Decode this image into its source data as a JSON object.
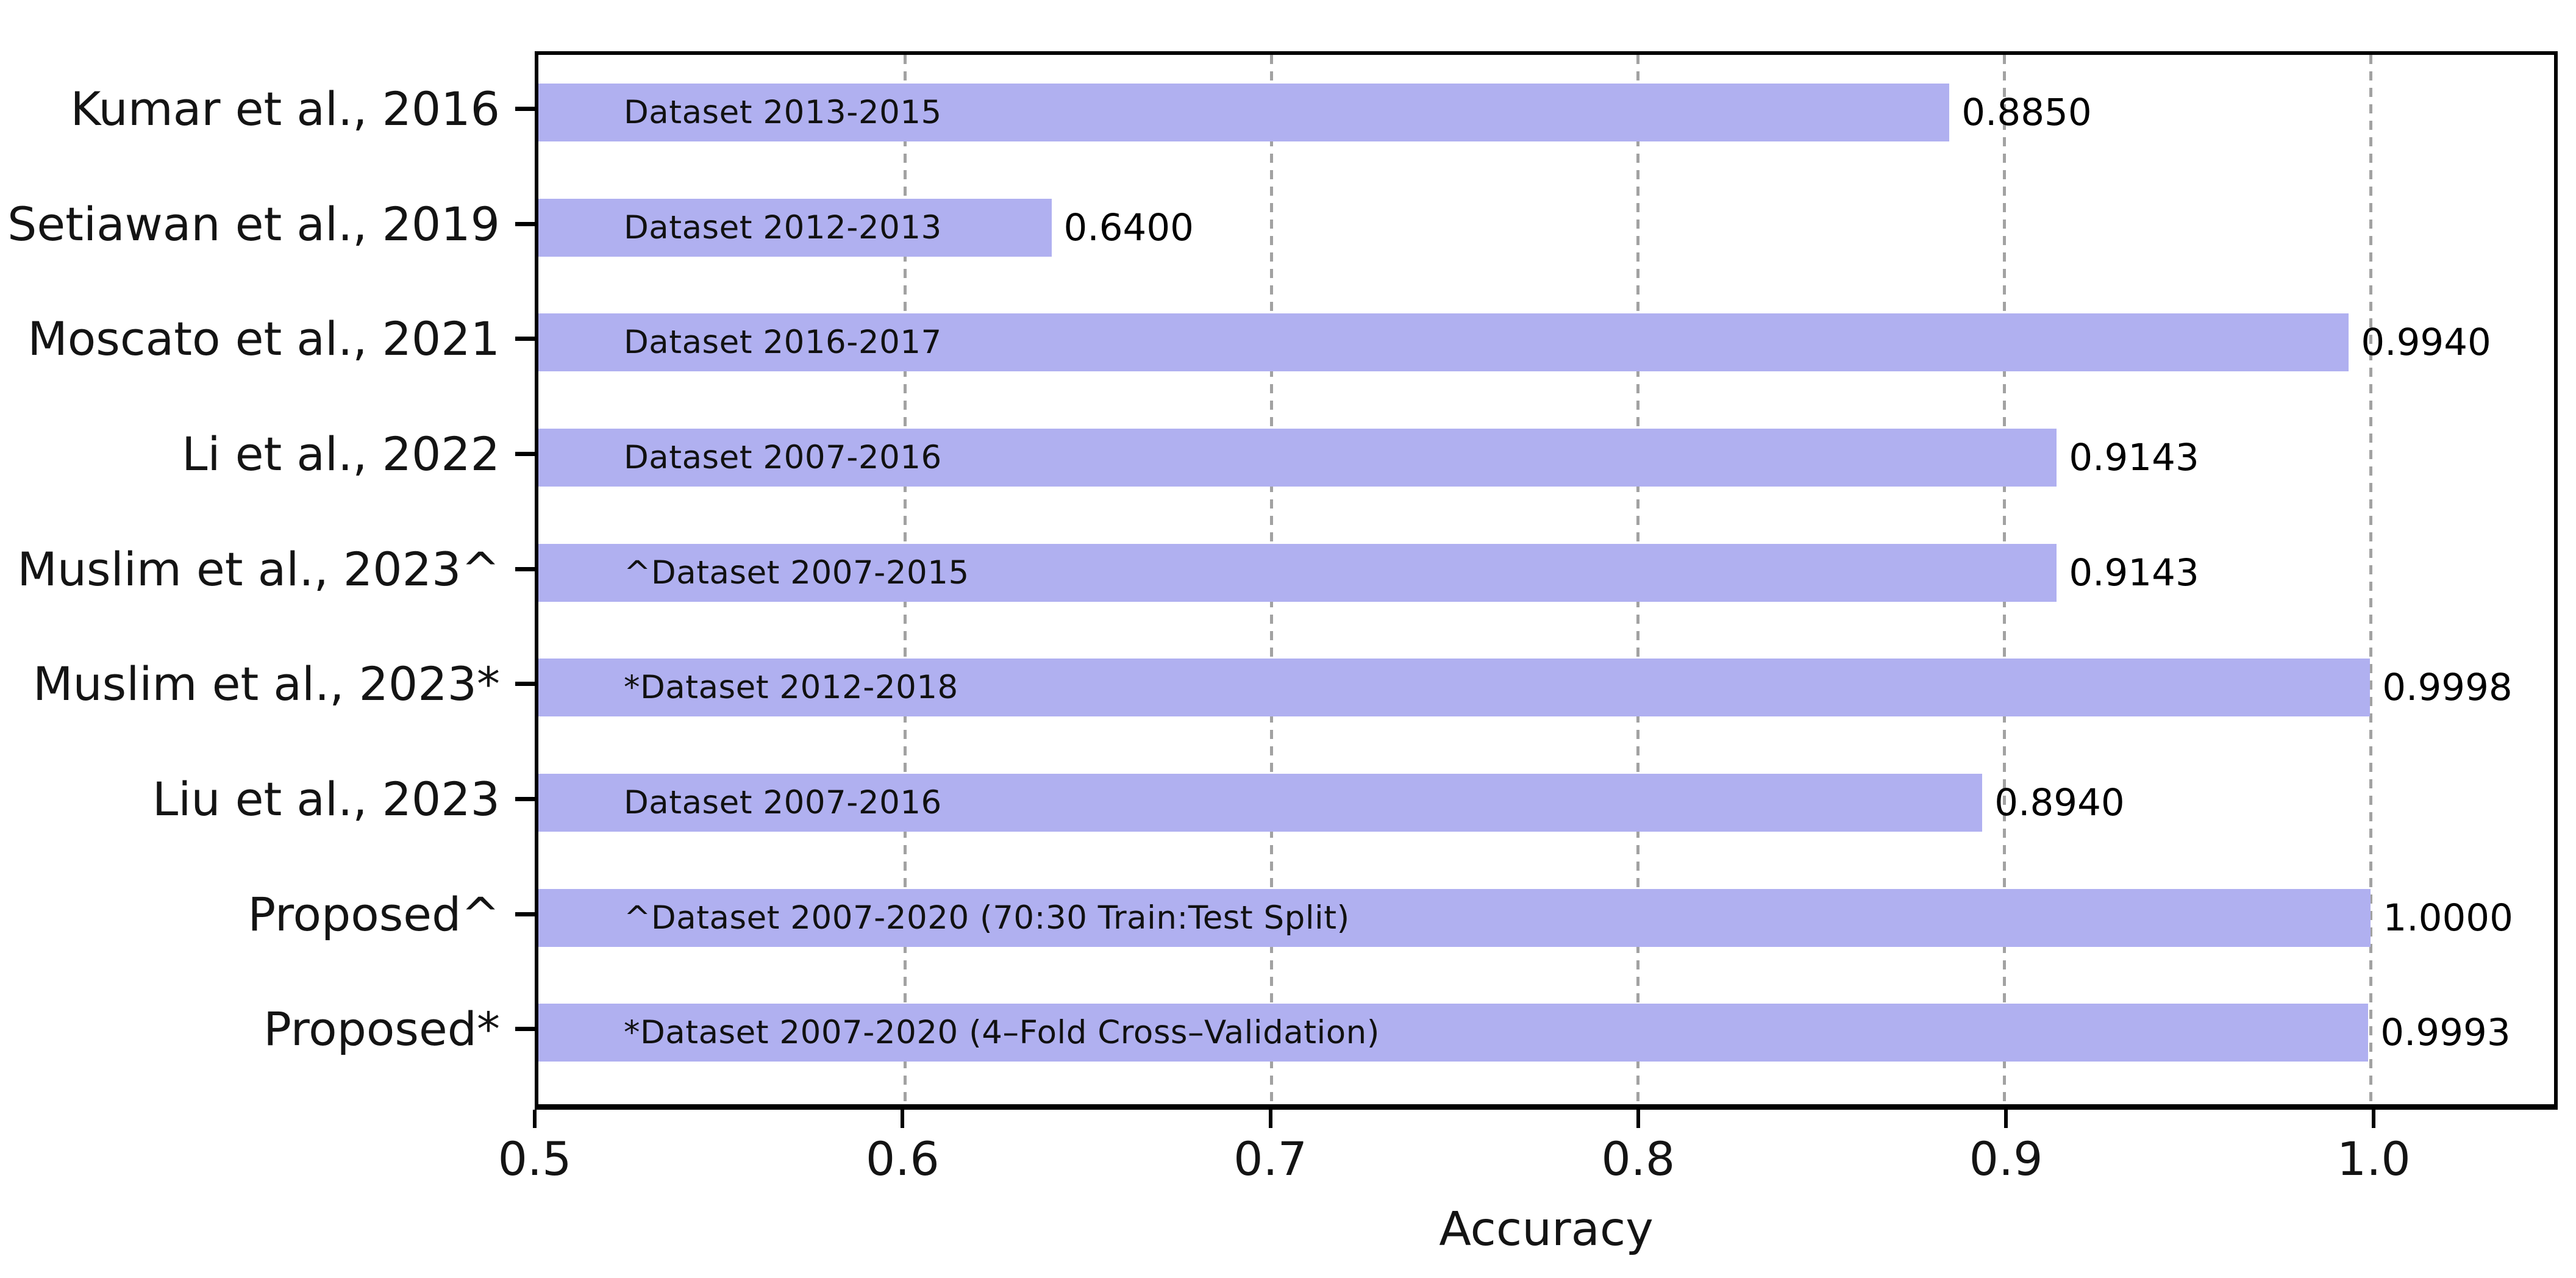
{
  "chart_data": {
    "type": "bar",
    "orientation": "horizontal",
    "title": "",
    "xlabel": "Accuracy",
    "ylabel": "",
    "xlim": [
      0.5,
      1.05
    ],
    "grid": "vertical dashed gridlines at x tick positions, drawn behind bars",
    "legend": "none",
    "bar_color": "#b0b0f0",
    "gridline_color": "#a2a2a2",
    "xticks": [
      {
        "value": 0.5,
        "label": "0.5"
      },
      {
        "value": 0.6,
        "label": "0.6"
      },
      {
        "value": 0.7,
        "label": "0.7"
      },
      {
        "value": 0.8,
        "label": "0.8"
      },
      {
        "value": 0.9,
        "label": "0.9"
      },
      {
        "value": 1.0,
        "label": "1.0"
      }
    ],
    "categories": [
      "Kumar et al., 2016",
      "Setiawan et al., 2019",
      "Moscato et al., 2021",
      "Li et al., 2022",
      "Muslim et al., 2023^",
      "Muslim et al., 2023*",
      "Liu et al., 2023",
      "Proposed^",
      "Proposed*"
    ],
    "series": [
      {
        "name": "Accuracy",
        "values": [
          0.885,
          0.64,
          0.994,
          0.9143,
          0.9143,
          0.9998,
          0.894,
          1.0,
          0.9993
        ]
      }
    ],
    "rows": [
      {
        "category": "Kumar et al., 2016",
        "bar_label": "Dataset 2013-2015",
        "value": 0.885,
        "value_label": "0.8850"
      },
      {
        "category": "Setiawan et al., 2019",
        "bar_label": "Dataset 2012-2013",
        "value": 0.64,
        "value_label": "0.6400"
      },
      {
        "category": "Moscato et al., 2021",
        "bar_label": "Dataset 2016-2017",
        "value": 0.994,
        "value_label": "0.9940"
      },
      {
        "category": "Li et al., 2022",
        "bar_label": "Dataset 2007-2016",
        "value": 0.9143,
        "value_label": "0.9143"
      },
      {
        "category": "Muslim et al., 2023^",
        "bar_label": "^Dataset 2007-2015",
        "value": 0.9143,
        "value_label": "0.9143"
      },
      {
        "category": "Muslim et al., 2023*",
        "bar_label": "*Dataset 2012-2018",
        "value": 0.9998,
        "value_label": "0.9998"
      },
      {
        "category": "Liu et al., 2023",
        "bar_label": "Dataset 2007-2016",
        "value": 0.894,
        "value_label": "0.8940"
      },
      {
        "category": "Proposed^",
        "bar_label": "^Dataset 2007-2020 (70:30 Train:Test Split)",
        "value": 1.0,
        "value_label": "1.0000"
      },
      {
        "category": "Proposed*",
        "bar_label": "*Dataset 2007-2020 (4–Fold Cross–Validation)",
        "value": 0.9993,
        "value_label": "0.9993"
      }
    ]
  }
}
